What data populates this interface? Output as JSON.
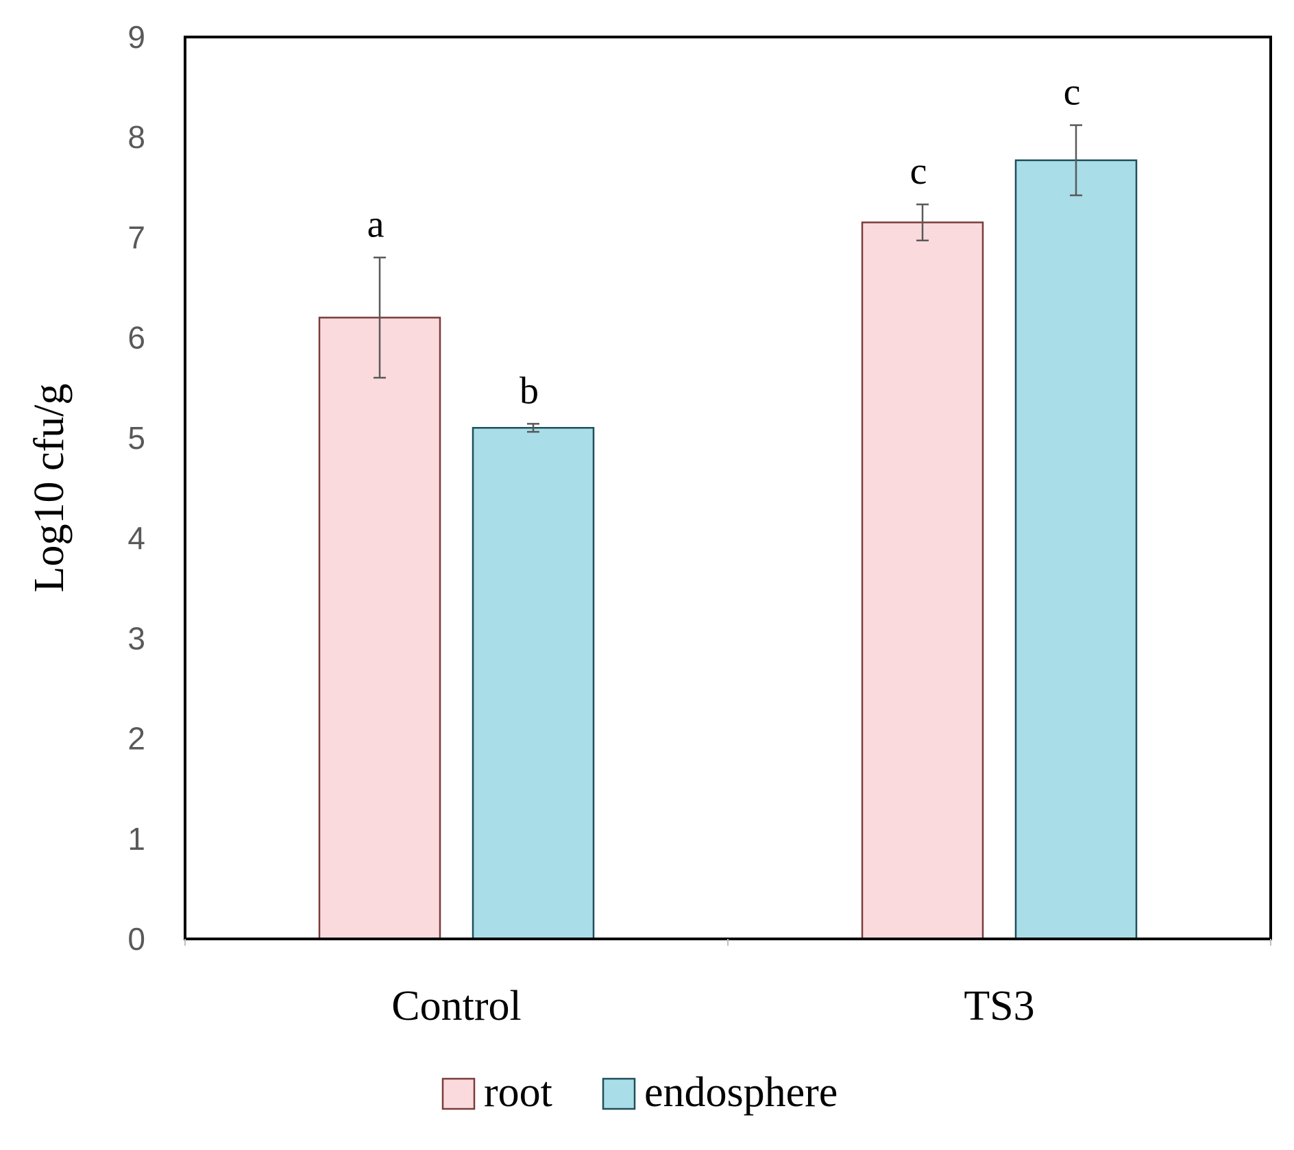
{
  "chart_data": {
    "type": "bar",
    "title": "",
    "xlabel": "",
    "ylabel": "Log10 cfu/g",
    "ylim": [
      0,
      9
    ],
    "yticks": [
      0,
      1,
      2,
      3,
      4,
      5,
      6,
      7,
      8,
      9
    ],
    "grid": false,
    "legend_position": "bottom-center",
    "categories": [
      "Control",
      "TS3"
    ],
    "series": [
      {
        "name": "root",
        "color": "#fadadd",
        "edge_color": "#7a3b3b",
        "values": [
          6.2,
          7.15
        ],
        "errors": [
          0.6,
          0.18
        ],
        "labels": [
          "a",
          "c"
        ]
      },
      {
        "name": "endosphere",
        "color": "#a9dde8",
        "edge_color": "#1f4f5a",
        "values": [
          5.1,
          7.77
        ],
        "errors": [
          0.04,
          0.35
        ],
        "labels": [
          "b",
          "c"
        ]
      }
    ]
  }
}
